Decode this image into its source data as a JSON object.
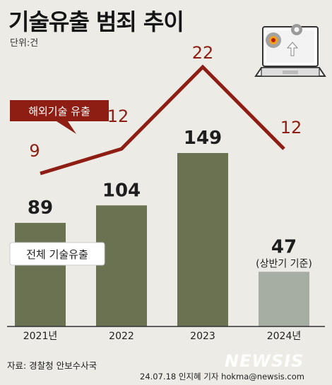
{
  "title": "기술유출 범죄 추이",
  "unit_label": "단위:건",
  "source": "자료: 경찰청 안보수사국",
  "credit": "24.07.18 인지혜 기자 hokma@newsis.com",
  "watermark": "NEWSIS",
  "colors": {
    "background": "#ecebe6",
    "bar": "#6b7252",
    "bar_partial": "#a6ada2",
    "line": "#8e1e13",
    "axis": "#333333"
  },
  "chart_data": {
    "type": "bar",
    "categories": [
      "2021년",
      "2022",
      "2023",
      "2024년"
    ],
    "series": [
      {
        "name": "전체 기술유출",
        "type": "bar",
        "values": [
          89,
          104,
          149,
          47
        ]
      },
      {
        "name": "해외기술 유출",
        "type": "line",
        "values": [
          9,
          12,
          22,
          12
        ]
      }
    ],
    "bar_note": "(상반기 기준)",
    "partial_category": "2024년",
    "legend": {
      "total": "전체 기술유출",
      "overseas": "해외기술 유출"
    },
    "grid": false
  }
}
